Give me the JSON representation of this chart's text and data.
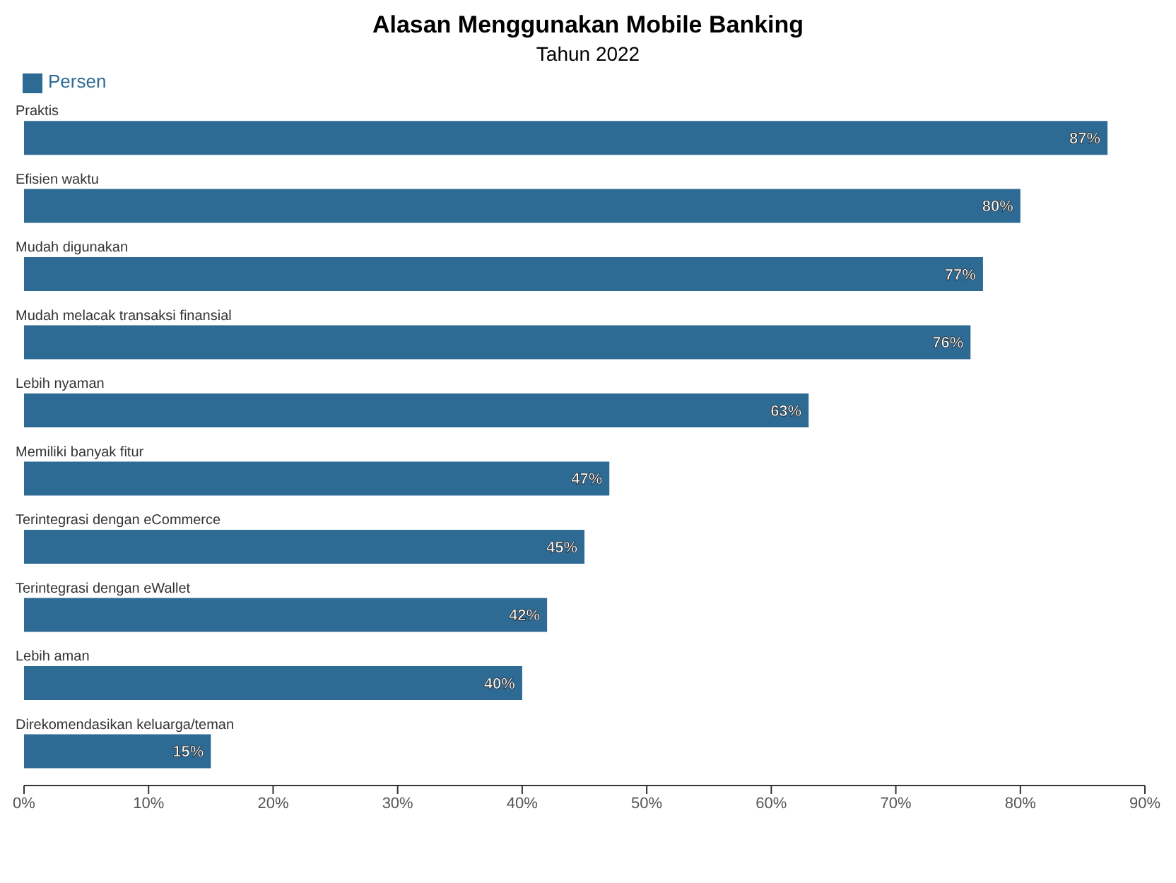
{
  "chart_data": {
    "type": "bar",
    "orientation": "horizontal",
    "title": "Alasan Menggunakan Mobile Banking",
    "subtitle": "Tahun 2022",
    "categories": [
      "Praktis",
      "Efisien waktu",
      "Mudah digunakan",
      "Mudah melacak transaksi finansial",
      "Lebih nyaman",
      "Memiliki banyak fitur",
      "Terintegrasi dengan eCommerce",
      "Terintegrasi dengan eWallet",
      "Lebih aman",
      "Direkomendasikan keluarga/teman"
    ],
    "series": [
      {
        "name": "Persen",
        "color": "#2d6a94",
        "values": [
          87,
          80,
          77,
          76,
          63,
          47,
          45,
          42,
          40,
          15
        ],
        "value_labels": [
          "87%",
          "80%",
          "77%",
          "76%",
          "63%",
          "47%",
          "45%",
          "42%",
          "40%",
          "15%"
        ]
      }
    ],
    "xlim": [
      0,
      90
    ],
    "xticks": [
      {
        "value": 0,
        "label": "0%"
      },
      {
        "value": 10,
        "label": "10%"
      },
      {
        "value": 20,
        "label": "20%"
      },
      {
        "value": 30,
        "label": "30%"
      },
      {
        "value": 40,
        "label": "40%"
      },
      {
        "value": 50,
        "label": "50%"
      },
      {
        "value": 60,
        "label": "60%"
      },
      {
        "value": 70,
        "label": "70%"
      },
      {
        "value": 80,
        "label": "80%"
      },
      {
        "value": 90,
        "label": "90%"
      }
    ],
    "grid": false,
    "legend": "top left"
  }
}
